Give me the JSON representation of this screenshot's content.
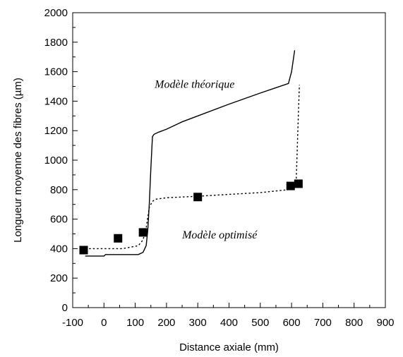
{
  "chart_data": {
    "type": "line",
    "title": "",
    "xlabel": "Distance axiale (mm)",
    "ylabel": "Longueur moyenne des fibres (µm)",
    "xlim": [
      -100,
      900
    ],
    "ylim": [
      0,
      2000
    ],
    "x_ticks": [
      "-100",
      "0",
      "100",
      "200",
      "300",
      "400",
      "500",
      "600",
      "700",
      "800",
      "900"
    ],
    "y_ticks": [
      "0",
      "200",
      "400",
      "600",
      "800",
      "1000",
      "1200",
      "1400",
      "1600",
      "1800",
      "2000"
    ],
    "grid": false,
    "series": [
      {
        "style": "solid",
        "x": [
          -60,
          0,
          5,
          60,
          110,
          125,
          135,
          140,
          145,
          150,
          155,
          160,
          175,
          200,
          250,
          300,
          400,
          500,
          590,
          600,
          610
        ],
        "y": [
          350,
          350,
          360,
          360,
          360,
          375,
          420,
          520,
          700,
          950,
          1160,
          1175,
          1190,
          1210,
          1260,
          1300,
          1380,
          1455,
          1520,
          1600,
          1745
        ]
      },
      {
        "style": "dotted",
        "x": [
          -60,
          0,
          60,
          110,
          125,
          135,
          145,
          155,
          165,
          200,
          300,
          400,
          500,
          590,
          605,
          615,
          620,
          625
        ],
        "y": [
          400,
          400,
          400,
          420,
          460,
          540,
          680,
          720,
          735,
          745,
          755,
          768,
          780,
          800,
          820,
          860,
          1200,
          1510
        ]
      },
      {
        "style": "markers",
        "x": [
          -65,
          45,
          125,
          300,
          597,
          622
        ],
        "y": [
          390,
          470,
          510,
          750,
          825,
          840
        ]
      }
    ],
    "annotations": [
      {
        "text": "Modèle théorique",
        "x": 290,
        "y": 1490
      },
      {
        "text": "Modèle optimisé",
        "x": 370,
        "y": 470
      }
    ]
  }
}
